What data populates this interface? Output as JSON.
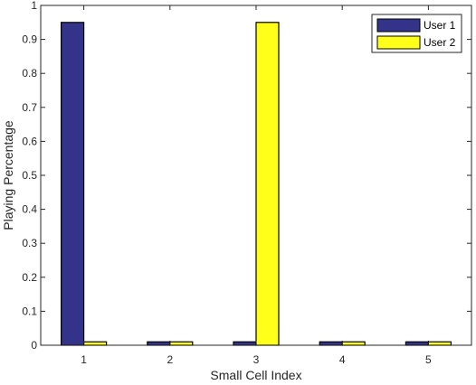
{
  "chart_data": {
    "type": "bar",
    "categories": [
      "1",
      "2",
      "3",
      "4",
      "5"
    ],
    "series": [
      {
        "name": "User 1",
        "color": "#33338a",
        "values": [
          0.95,
          0.01,
          0.01,
          0.01,
          0.01
        ]
      },
      {
        "name": "User 2",
        "color": "#ffff1a",
        "values": [
          0.01,
          0.01,
          0.95,
          0.01,
          0.01
        ]
      }
    ],
    "xlabel": "Small Cell Index",
    "ylabel": "Playing Percentage",
    "ylim": [
      0,
      1
    ],
    "yticks": [
      "0",
      "0.1",
      "0.2",
      "0.3",
      "0.4",
      "0.5",
      "0.6",
      "0.7",
      "0.8",
      "0.9",
      "1"
    ],
    "legend_position": "top-right",
    "grid": false
  }
}
